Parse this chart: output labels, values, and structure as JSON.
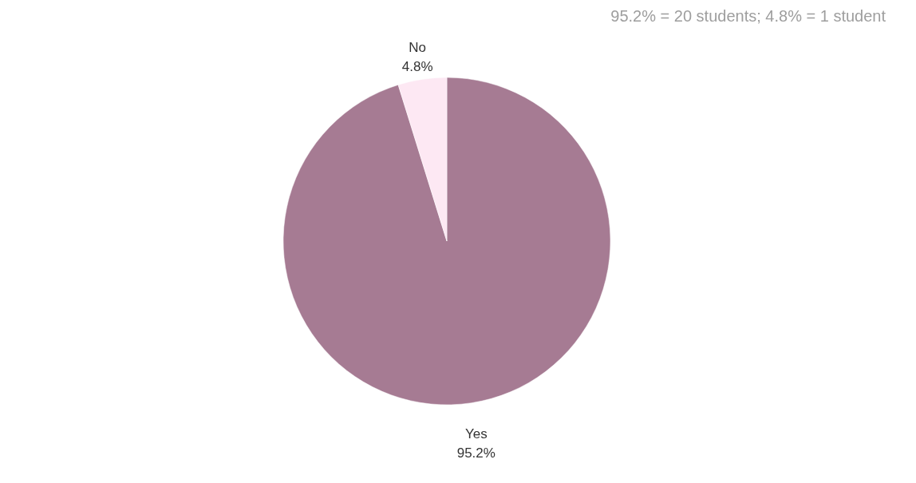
{
  "chart_data": {
    "type": "pie",
    "annotations": [
      "95.2% = 20 students; 4.8% = 1 student"
    ],
    "categories": [
      "Yes",
      "No"
    ],
    "values": [
      95.2,
      4.8
    ],
    "value_labels": [
      "95.2%",
      "4.8%"
    ],
    "colors": [
      "#a67b93",
      "#fde8f3"
    ],
    "legend": false
  }
}
